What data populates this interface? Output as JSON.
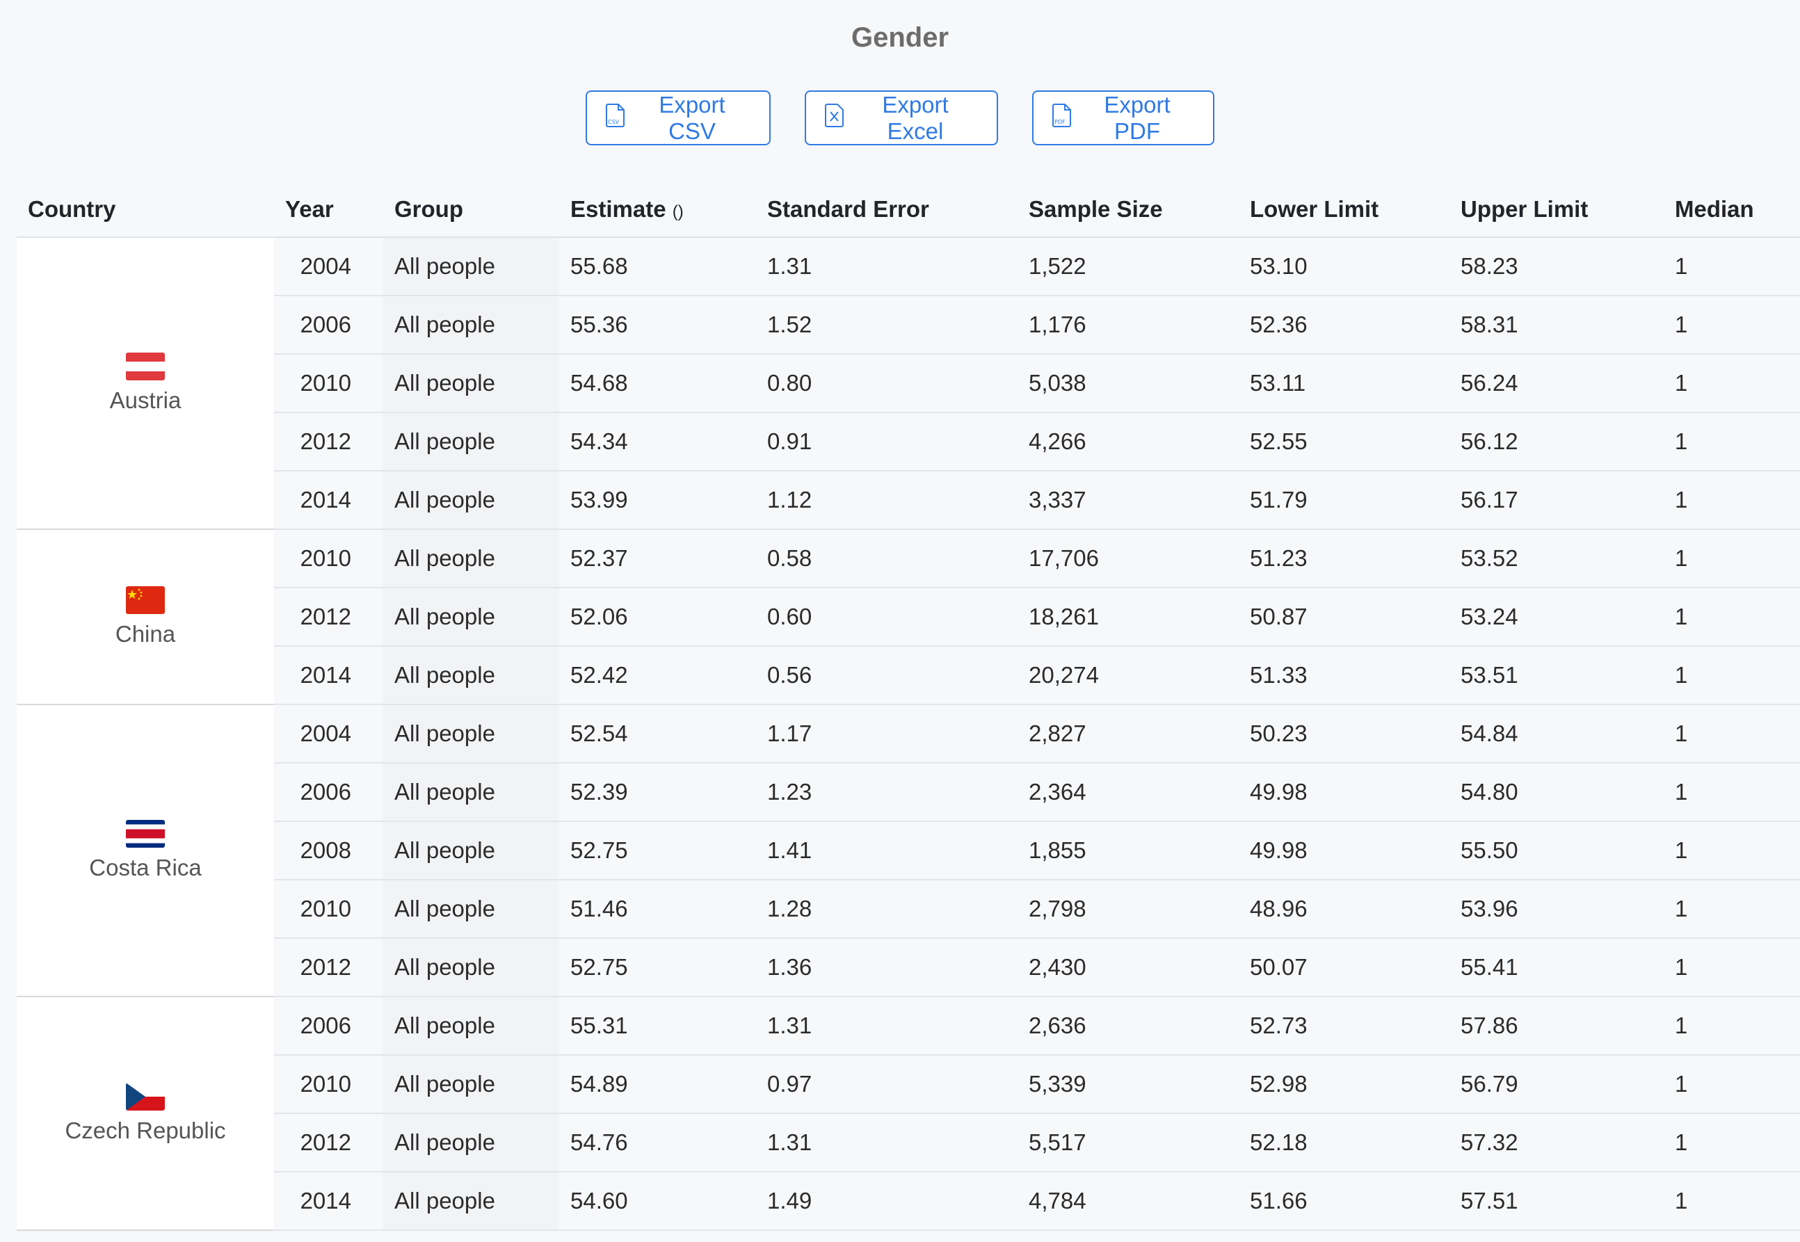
{
  "title": "Gender",
  "toolbar": {
    "csv_label": "Export CSV",
    "excel_label": "Export Excel",
    "pdf_label": "Export PDF",
    "icon_color": "#2f7ae5"
  },
  "columns": {
    "country": "Country",
    "year": "Year",
    "group": "Group",
    "estimate": "Estimate",
    "estimate_unit": "()",
    "std_error": "Standard Error",
    "sample_size": "Sample Size",
    "lower_limit": "Lower Limit",
    "upper_limit": "Upper Limit",
    "median": "Median"
  },
  "countries": [
    {
      "name": "Austria",
      "flag": "austria-flag",
      "rows": [
        {
          "year": "2004",
          "group": "All people",
          "estimate": "55.68",
          "std_error": "1.31",
          "sample_size": "1,522",
          "lower": "53.10",
          "upper": "58.23",
          "median": "1"
        },
        {
          "year": "2006",
          "group": "All people",
          "estimate": "55.36",
          "std_error": "1.52",
          "sample_size": "1,176",
          "lower": "52.36",
          "upper": "58.31",
          "median": "1"
        },
        {
          "year": "2010",
          "group": "All people",
          "estimate": "54.68",
          "std_error": "0.80",
          "sample_size": "5,038",
          "lower": "53.11",
          "upper": "56.24",
          "median": "1"
        },
        {
          "year": "2012",
          "group": "All people",
          "estimate": "54.34",
          "std_error": "0.91",
          "sample_size": "4,266",
          "lower": "52.55",
          "upper": "56.12",
          "median": "1"
        },
        {
          "year": "2014",
          "group": "All people",
          "estimate": "53.99",
          "std_error": "1.12",
          "sample_size": "3,337",
          "lower": "51.79",
          "upper": "56.17",
          "median": "1"
        }
      ]
    },
    {
      "name": "China",
      "flag": "china-flag",
      "rows": [
        {
          "year": "2010",
          "group": "All people",
          "estimate": "52.37",
          "std_error": "0.58",
          "sample_size": "17,706",
          "lower": "51.23",
          "upper": "53.52",
          "median": "1"
        },
        {
          "year": "2012",
          "group": "All people",
          "estimate": "52.06",
          "std_error": "0.60",
          "sample_size": "18,261",
          "lower": "50.87",
          "upper": "53.24",
          "median": "1"
        },
        {
          "year": "2014",
          "group": "All people",
          "estimate": "52.42",
          "std_error": "0.56",
          "sample_size": "20,274",
          "lower": "51.33",
          "upper": "53.51",
          "median": "1"
        }
      ]
    },
    {
      "name": "Costa Rica",
      "flag": "costa-rica-flag",
      "rows": [
        {
          "year": "2004",
          "group": "All people",
          "estimate": "52.54",
          "std_error": "1.17",
          "sample_size": "2,827",
          "lower": "50.23",
          "upper": "54.84",
          "median": "1"
        },
        {
          "year": "2006",
          "group": "All people",
          "estimate": "52.39",
          "std_error": "1.23",
          "sample_size": "2,364",
          "lower": "49.98",
          "upper": "54.80",
          "median": "1"
        },
        {
          "year": "2008",
          "group": "All people",
          "estimate": "52.75",
          "std_error": "1.41",
          "sample_size": "1,855",
          "lower": "49.98",
          "upper": "55.50",
          "median": "1"
        },
        {
          "year": "2010",
          "group": "All people",
          "estimate": "51.46",
          "std_error": "1.28",
          "sample_size": "2,798",
          "lower": "48.96",
          "upper": "53.96",
          "median": "1"
        },
        {
          "year": "2012",
          "group": "All people",
          "estimate": "52.75",
          "std_error": "1.36",
          "sample_size": "2,430",
          "lower": "50.07",
          "upper": "55.41",
          "median": "1"
        }
      ]
    },
    {
      "name": "Czech Republic",
      "flag": "czech-republic-flag",
      "rows": [
        {
          "year": "2006",
          "group": "All people",
          "estimate": "55.31",
          "std_error": "1.31",
          "sample_size": "2,636",
          "lower": "52.73",
          "upper": "57.86",
          "median": "1"
        },
        {
          "year": "2010",
          "group": "All people",
          "estimate": "54.89",
          "std_error": "0.97",
          "sample_size": "5,339",
          "lower": "52.98",
          "upper": "56.79",
          "median": "1"
        },
        {
          "year": "2012",
          "group": "All people",
          "estimate": "54.76",
          "std_error": "1.31",
          "sample_size": "5,517",
          "lower": "52.18",
          "upper": "57.32",
          "median": "1"
        },
        {
          "year": "2014",
          "group": "All people",
          "estimate": "54.60",
          "std_error": "1.49",
          "sample_size": "4,784",
          "lower": "51.66",
          "upper": "57.51",
          "median": "1"
        }
      ]
    }
  ]
}
